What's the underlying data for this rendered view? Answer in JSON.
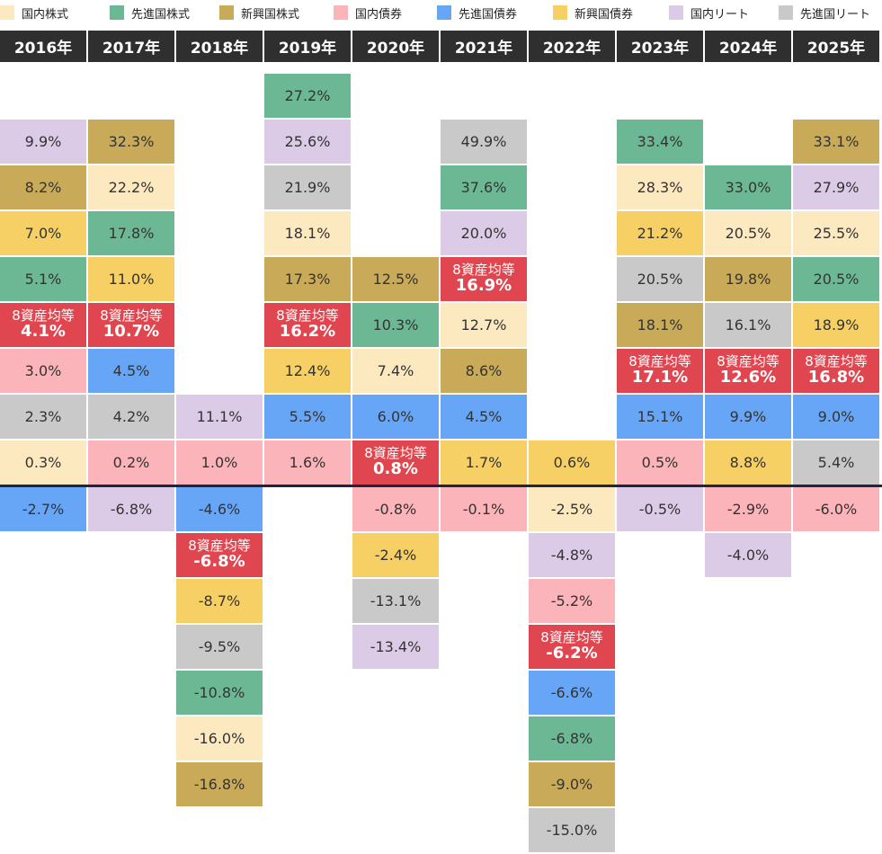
{
  "legend": [
    {
      "key": "jp_eq",
      "label": "国内株式",
      "color": "#fde9c0"
    },
    {
      "key": "dev_eq",
      "label": "先進国株式",
      "color": "#6db894"
    },
    {
      "key": "em_eq",
      "label": "新興国株式",
      "color": "#c9aa59"
    },
    {
      "key": "jp_bond",
      "label": "国内債券",
      "color": "#fbb4b9"
    },
    {
      "key": "dev_bond",
      "label": "先進国債券",
      "color": "#67a6f7"
    },
    {
      "key": "em_bond",
      "label": "新興国債券",
      "color": "#f6d064"
    },
    {
      "key": "jp_reit",
      "label": "国内リート",
      "color": "#dccbe6"
    },
    {
      "key": "dev_reit",
      "label": "先進国リート",
      "color": "#c9c9c9"
    }
  ],
  "avg_label": "8資産均等",
  "avg_color": "#e0464f",
  "chart_data": {
    "type": "table",
    "years": [
      "2016年",
      "2017年",
      "2018年",
      "2019年",
      "2020年",
      "2021年",
      "2022年",
      "2023年",
      "2024年",
      "2025年"
    ],
    "columns": [
      {
        "year": "2016年",
        "positive": [
          [
            "jp_reit",
            "9.9%"
          ],
          [
            "em_eq",
            "8.2%"
          ],
          [
            "em_bond",
            "7.0%"
          ],
          [
            "dev_eq",
            "5.1%"
          ],
          [
            "avg",
            "4.1%"
          ],
          [
            "jp_bond",
            "3.0%"
          ],
          [
            "dev_reit",
            "2.3%"
          ],
          [
            "jp_eq",
            "0.3%"
          ]
        ],
        "negative": [
          [
            "dev_bond",
            "-2.7%"
          ]
        ]
      },
      {
        "year": "2017年",
        "positive": [
          [
            "em_eq",
            "32.3%"
          ],
          [
            "jp_eq",
            "22.2%"
          ],
          [
            "dev_eq",
            "17.8%"
          ],
          [
            "em_bond",
            "11.0%"
          ],
          [
            "avg",
            "10.7%"
          ],
          [
            "dev_bond",
            "4.5%"
          ],
          [
            "dev_reit",
            "4.2%"
          ],
          [
            "jp_bond",
            "0.2%"
          ]
        ],
        "negative": [
          [
            "jp_reit",
            "-6.8%"
          ]
        ]
      },
      {
        "year": "2018年",
        "positive": [
          [
            "jp_reit",
            "11.1%"
          ],
          [
            "jp_bond",
            "1.0%"
          ]
        ],
        "negative": [
          [
            "dev_bond",
            "-4.6%"
          ],
          [
            "avg",
            "-6.8%"
          ],
          [
            "em_bond",
            "-8.7%"
          ],
          [
            "dev_reit",
            "-9.5%"
          ],
          [
            "dev_eq",
            "-10.8%"
          ],
          [
            "jp_eq",
            "-16.0%"
          ],
          [
            "em_eq",
            "-16.8%"
          ]
        ]
      },
      {
        "year": "2019年",
        "positive": [
          [
            "dev_eq",
            "27.2%"
          ],
          [
            "jp_reit",
            "25.6%"
          ],
          [
            "dev_reit",
            "21.9%"
          ],
          [
            "jp_eq",
            "18.1%"
          ],
          [
            "em_eq",
            "17.3%"
          ],
          [
            "avg",
            "16.2%"
          ],
          [
            "em_bond",
            "12.4%"
          ],
          [
            "dev_bond",
            "5.5%"
          ],
          [
            "jp_bond",
            "1.6%"
          ]
        ],
        "negative": []
      },
      {
        "year": "2020年",
        "positive": [
          [
            "em_eq",
            "12.5%"
          ],
          [
            "dev_eq",
            "10.3%"
          ],
          [
            "jp_eq",
            "7.4%"
          ],
          [
            "dev_bond",
            "6.0%"
          ],
          [
            "avg",
            "0.8%"
          ]
        ],
        "negative": [
          [
            "jp_bond",
            "-0.8%"
          ],
          [
            "em_bond",
            "-2.4%"
          ],
          [
            "dev_reit",
            "-13.1%"
          ],
          [
            "jp_reit",
            "-13.4%"
          ]
        ]
      },
      {
        "year": "2021年",
        "positive": [
          [
            "dev_reit",
            "49.9%"
          ],
          [
            "dev_eq",
            "37.6%"
          ],
          [
            "jp_reit",
            "20.0%"
          ],
          [
            "avg",
            "16.9%"
          ],
          [
            "jp_eq",
            "12.7%"
          ],
          [
            "em_eq",
            "8.6%"
          ],
          [
            "dev_bond",
            "4.5%"
          ],
          [
            "em_bond",
            "1.7%"
          ]
        ],
        "negative": [
          [
            "jp_bond",
            "-0.1%"
          ]
        ]
      },
      {
        "year": "2022年",
        "positive": [
          [
            "em_bond",
            "0.6%"
          ]
        ],
        "negative": [
          [
            "jp_eq",
            "-2.5%"
          ],
          [
            "jp_reit",
            "-4.8%"
          ],
          [
            "jp_bond",
            "-5.2%"
          ],
          [
            "avg",
            "-6.2%"
          ],
          [
            "dev_bond",
            "-6.6%"
          ],
          [
            "dev_eq",
            "-6.8%"
          ],
          [
            "em_eq",
            "-9.0%"
          ],
          [
            "dev_reit",
            "-15.0%"
          ]
        ]
      },
      {
        "year": "2023年",
        "positive": [
          [
            "dev_eq",
            "33.4%"
          ],
          [
            "jp_eq",
            "28.3%"
          ],
          [
            "em_bond",
            "21.2%"
          ],
          [
            "dev_reit",
            "20.5%"
          ],
          [
            "em_eq",
            "18.1%"
          ],
          [
            "avg",
            "17.1%"
          ],
          [
            "dev_bond",
            "15.1%"
          ],
          [
            "jp_bond",
            "0.5%"
          ]
        ],
        "negative": [
          [
            "jp_reit",
            "-0.5%"
          ]
        ]
      },
      {
        "year": "2024年",
        "positive": [
          [
            "dev_eq",
            "33.0%"
          ],
          [
            "jp_eq",
            "20.5%"
          ],
          [
            "em_eq",
            "19.8%"
          ],
          [
            "dev_reit",
            "16.1%"
          ],
          [
            "avg",
            "12.6%"
          ],
          [
            "dev_bond",
            "9.9%"
          ],
          [
            "em_bond",
            "8.8%"
          ]
        ],
        "negative": [
          [
            "jp_bond",
            "-2.9%"
          ],
          [
            "jp_reit",
            "-4.0%"
          ]
        ]
      },
      {
        "year": "2025年",
        "positive": [
          [
            "em_eq",
            "33.1%"
          ],
          [
            "jp_reit",
            "27.9%"
          ],
          [
            "jp_eq",
            "25.5%"
          ],
          [
            "dev_eq",
            "20.5%"
          ],
          [
            "em_bond",
            "18.9%"
          ],
          [
            "avg",
            "16.8%"
          ],
          [
            "dev_bond",
            "9.0%"
          ],
          [
            "dev_reit",
            "5.4%"
          ]
        ],
        "negative": [
          [
            "jp_bond",
            "-6.0%"
          ]
        ]
      }
    ]
  }
}
